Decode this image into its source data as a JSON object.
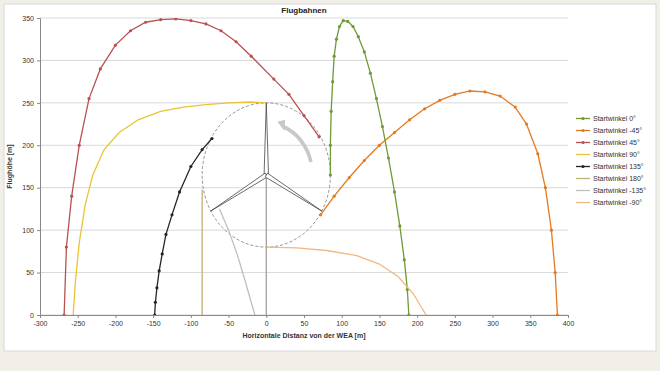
{
  "chart_data": {
    "type": "line",
    "title": "Flugbahnen",
    "x_label": "Horizontale Distanz von der WEA [m]",
    "y_label": "Flughöhe [m]",
    "xlim": [
      -300,
      400
    ],
    "ylim": [
      0,
      350
    ],
    "xticks": [
      -300,
      -250,
      -200,
      -150,
      -100,
      -50,
      0,
      50,
      100,
      150,
      200,
      250,
      300,
      350,
      400
    ],
    "yticks": [
      0,
      50,
      100,
      150,
      200,
      250,
      300,
      350
    ],
    "grid": true,
    "legend": "right",
    "wind_turbine": {
      "hub_height": 165,
      "rotor_radius": 85
    },
    "series": [
      {
        "name": "Startwinkel 0°",
        "color": "#6f9a35",
        "marker": "circle",
        "x": [
          85,
          85,
          86,
          88,
          90,
          93,
          97,
          102,
          108,
          115,
          122,
          130,
          138,
          146,
          154,
          162,
          170,
          177,
          183,
          187,
          189
        ],
        "values": [
          165,
          200,
          240,
          275,
          305,
          325,
          340,
          347,
          346,
          340,
          328,
          310,
          285,
          255,
          222,
          185,
          145,
          105,
          65,
          30,
          0
        ]
      },
      {
        "name": "Startwinkel -45°",
        "color": "#e47a1f",
        "marker": "circle",
        "x": [
          72,
          90,
          110,
          130,
          150,
          170,
          190,
          210,
          230,
          250,
          270,
          290,
          310,
          330,
          345,
          360,
          370,
          378,
          383,
          386
        ],
        "values": [
          118,
          140,
          162,
          182,
          200,
          215,
          230,
          243,
          253,
          260,
          264,
          263,
          258,
          245,
          225,
          190,
          150,
          100,
          50,
          0
        ]
      },
      {
        "name": "Startwinkel 45°",
        "color": "#b9524f",
        "marker": "circle",
        "x": [
          70,
          50,
          30,
          10,
          -20,
          -40,
          -60,
          -80,
          -100,
          -120,
          -140,
          -160,
          -180,
          -200,
          -220,
          -235,
          -248,
          -258,
          -265,
          -268
        ],
        "values": [
          210,
          235,
          260,
          278,
          305,
          322,
          335,
          343,
          347,
          349,
          348,
          345,
          335,
          318,
          290,
          255,
          200,
          140,
          80,
          0
        ]
      },
      {
        "name": "Startwinkel 90°",
        "color": "#e8c437",
        "marker": "none",
        "x": [
          0,
          -20,
          -50,
          -80,
          -110,
          -140,
          -170,
          -195,
          -215,
          -230,
          -240,
          -248,
          -253,
          -256
        ],
        "values": [
          250,
          251,
          250,
          248,
          245,
          240,
          230,
          215,
          195,
          165,
          130,
          85,
          40,
          0
        ]
      },
      {
        "name": "Startwinkel 135°",
        "color": "#262626",
        "marker": "circle",
        "x": [
          -72,
          -85,
          -100,
          -115,
          -125,
          -133,
          -138,
          -142,
          -145,
          -147,
          -148
        ],
        "values": [
          208,
          195,
          175,
          145,
          118,
          95,
          72,
          52,
          32,
          15,
          0
        ]
      },
      {
        "name": "Startwinkel 180°",
        "color": "#c2b074",
        "marker": "none",
        "x": [
          -85,
          -85
        ],
        "values": [
          148,
          0
        ]
      },
      {
        "name": "Startwinkel -135°",
        "color": "#bfbfbf",
        "marker": "none",
        "x": [
          -62,
          -50,
          -38,
          -28,
          -20,
          -15
        ],
        "values": [
          125,
          100,
          70,
          40,
          15,
          0
        ]
      },
      {
        "name": "Startwinkel -90°",
        "color": "#f0b882",
        "marker": "none",
        "x": [
          0,
          40,
          80,
          120,
          150,
          175,
          195,
          205,
          212
        ],
        "values": [
          80,
          79,
          76,
          70,
          60,
          45,
          25,
          10,
          0
        ]
      }
    ]
  }
}
